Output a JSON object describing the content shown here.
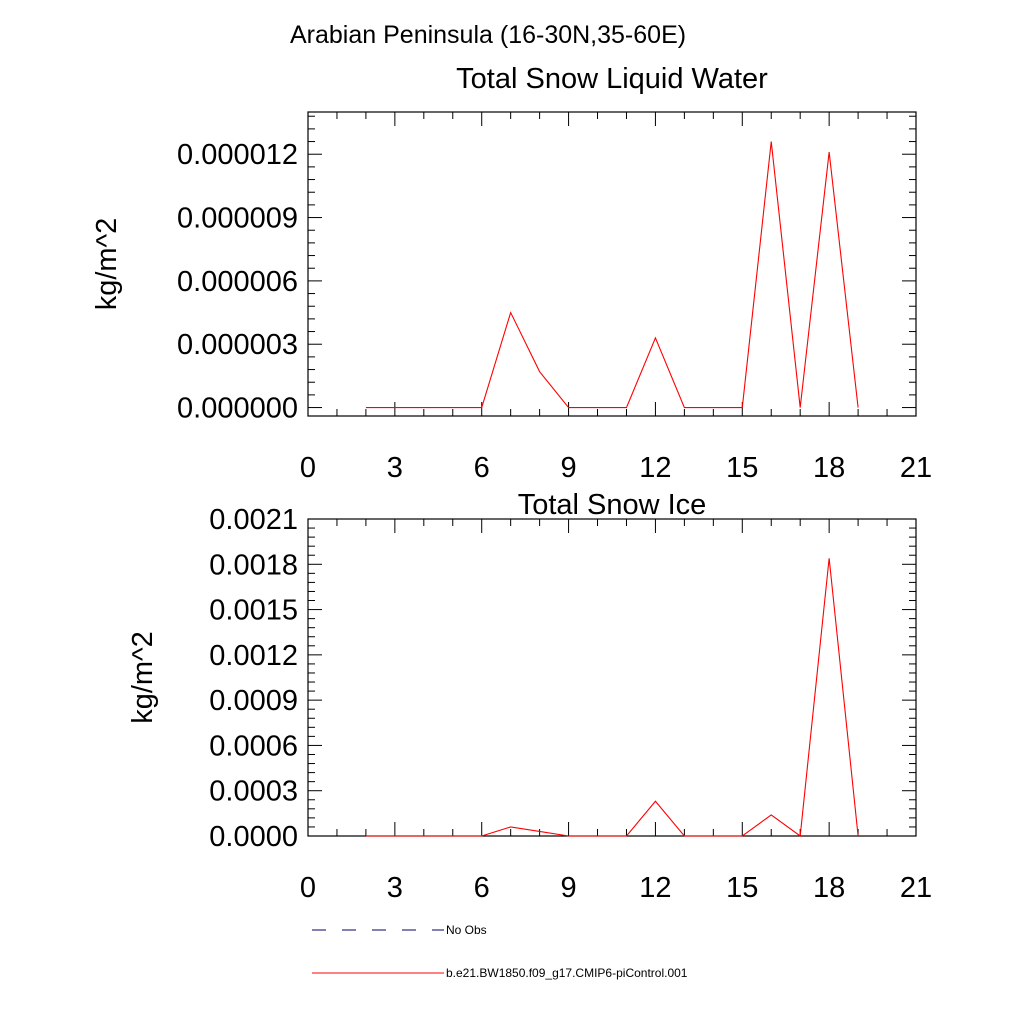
{
  "region_title": "Arabian Peninsula (16-30N,35-60E)",
  "legend": {
    "entries": [
      {
        "label": "No Obs",
        "color": "#000066",
        "style": "dashed"
      },
      {
        "label": "b.e21.BW1850.f09_g17.CMIP6-piControl.001",
        "color": "#ff0000",
        "style": "solid"
      }
    ]
  },
  "chart_data": [
    {
      "type": "line",
      "title": "Total Snow Liquid Water",
      "ylabel": "kg/m^2",
      "xlabel": "",
      "xlim": [
        0,
        21
      ],
      "ylim": [
        -4e-07,
        1.4e-05
      ],
      "xticks": [
        0,
        3,
        6,
        9,
        12,
        15,
        18,
        21
      ],
      "yticks": [
        0,
        3e-06,
        6e-06,
        9e-06,
        1.2e-05
      ],
      "xtick_labels": [
        "0",
        "3",
        "6",
        "9",
        "12",
        "15",
        "18",
        "21"
      ],
      "ytick_labels": [
        "0.000000",
        "0.000003",
        "0.000006",
        "0.000009",
        "0.000012"
      ],
      "grid": false,
      "series": [
        {
          "name": "b.e21.BW1850.f09_g17.CMIP6-piControl.001",
          "color": "#ff0000",
          "x": [
            2,
            3,
            4,
            5,
            6,
            7,
            8,
            9,
            10,
            11,
            12,
            13,
            14,
            15,
            16,
            17,
            18,
            19
          ],
          "y": [
            0,
            0,
            0,
            0,
            0,
            4.5e-06,
            1.7e-06,
            0,
            0,
            0,
            3.3e-06,
            0,
            0,
            0,
            1.26e-05,
            0,
            1.21e-05,
            0
          ]
        }
      ]
    },
    {
      "type": "line",
      "title": "Total Snow Ice",
      "ylabel": "kg/m^2",
      "xlabel": "",
      "xlim": [
        0,
        21
      ],
      "ylim": [
        0,
        0.0021
      ],
      "xticks": [
        0,
        3,
        6,
        9,
        12,
        15,
        18,
        21
      ],
      "yticks": [
        0,
        0.0003,
        0.0006,
        0.0009,
        0.0012,
        0.0015,
        0.0018,
        0.0021
      ],
      "xtick_labels": [
        "0",
        "3",
        "6",
        "9",
        "12",
        "15",
        "18",
        "21"
      ],
      "ytick_labels": [
        "0.0000",
        "0.0003",
        "0.0006",
        "0.0009",
        "0.0012",
        "0.0015",
        "0.0018",
        "0.0021"
      ],
      "grid": false,
      "series": [
        {
          "name": "b.e21.BW1850.f09_g17.CMIP6-piControl.001",
          "color": "#ff0000",
          "x": [
            2,
            3,
            4,
            5,
            6,
            7,
            8,
            9,
            10,
            11,
            12,
            13,
            14,
            15,
            16,
            17,
            18,
            19
          ],
          "y": [
            0,
            0,
            0,
            0,
            0,
            6e-05,
            3e-05,
            0,
            0,
            0,
            0.00023,
            0,
            0,
            0,
            0.00014,
            0,
            0.00184,
            0
          ]
        }
      ]
    }
  ]
}
